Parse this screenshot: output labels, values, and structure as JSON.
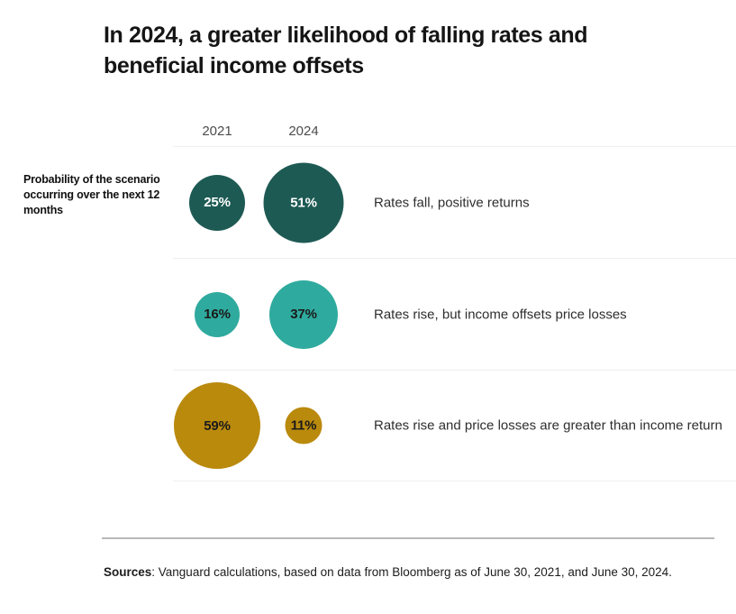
{
  "title": {
    "line1": "In 2024, a greater likelihood of falling rates and",
    "line2": "beneficial income offsets"
  },
  "chart_data": {
    "type": "bubble",
    "title": "In 2024, a greater likelihood of falling rates and beneficial income offsets",
    "axis_label": "Probability of the scenario occurring over the next 12 months",
    "columns": [
      "2021",
      "2024"
    ],
    "unit": "%",
    "rows": [
      {
        "label": "Rates fall, positive returns",
        "values": [
          25,
          51
        ],
        "color": "#1e5a54",
        "value_text_color": "#ffffff"
      },
      {
        "label": "Rates rise, but income offsets price losses",
        "values": [
          16,
          37
        ],
        "color": "#2faa9e",
        "value_text_color": "#1a1a1a"
      },
      {
        "label": "Rates rise and price losses are greater than income return",
        "values": [
          59,
          11
        ],
        "color": "#ba8a0d",
        "value_text_color": "#1a1a1a"
      }
    ],
    "layout": {
      "legend": "none",
      "grid": "row-separators",
      "bubble_area_proportional": true
    }
  },
  "footer": {
    "label_bold": "Sources",
    "text": ": Vanguard calculations, based on data from Bloomberg as of June 30, 2021, and June 30, 2024."
  }
}
